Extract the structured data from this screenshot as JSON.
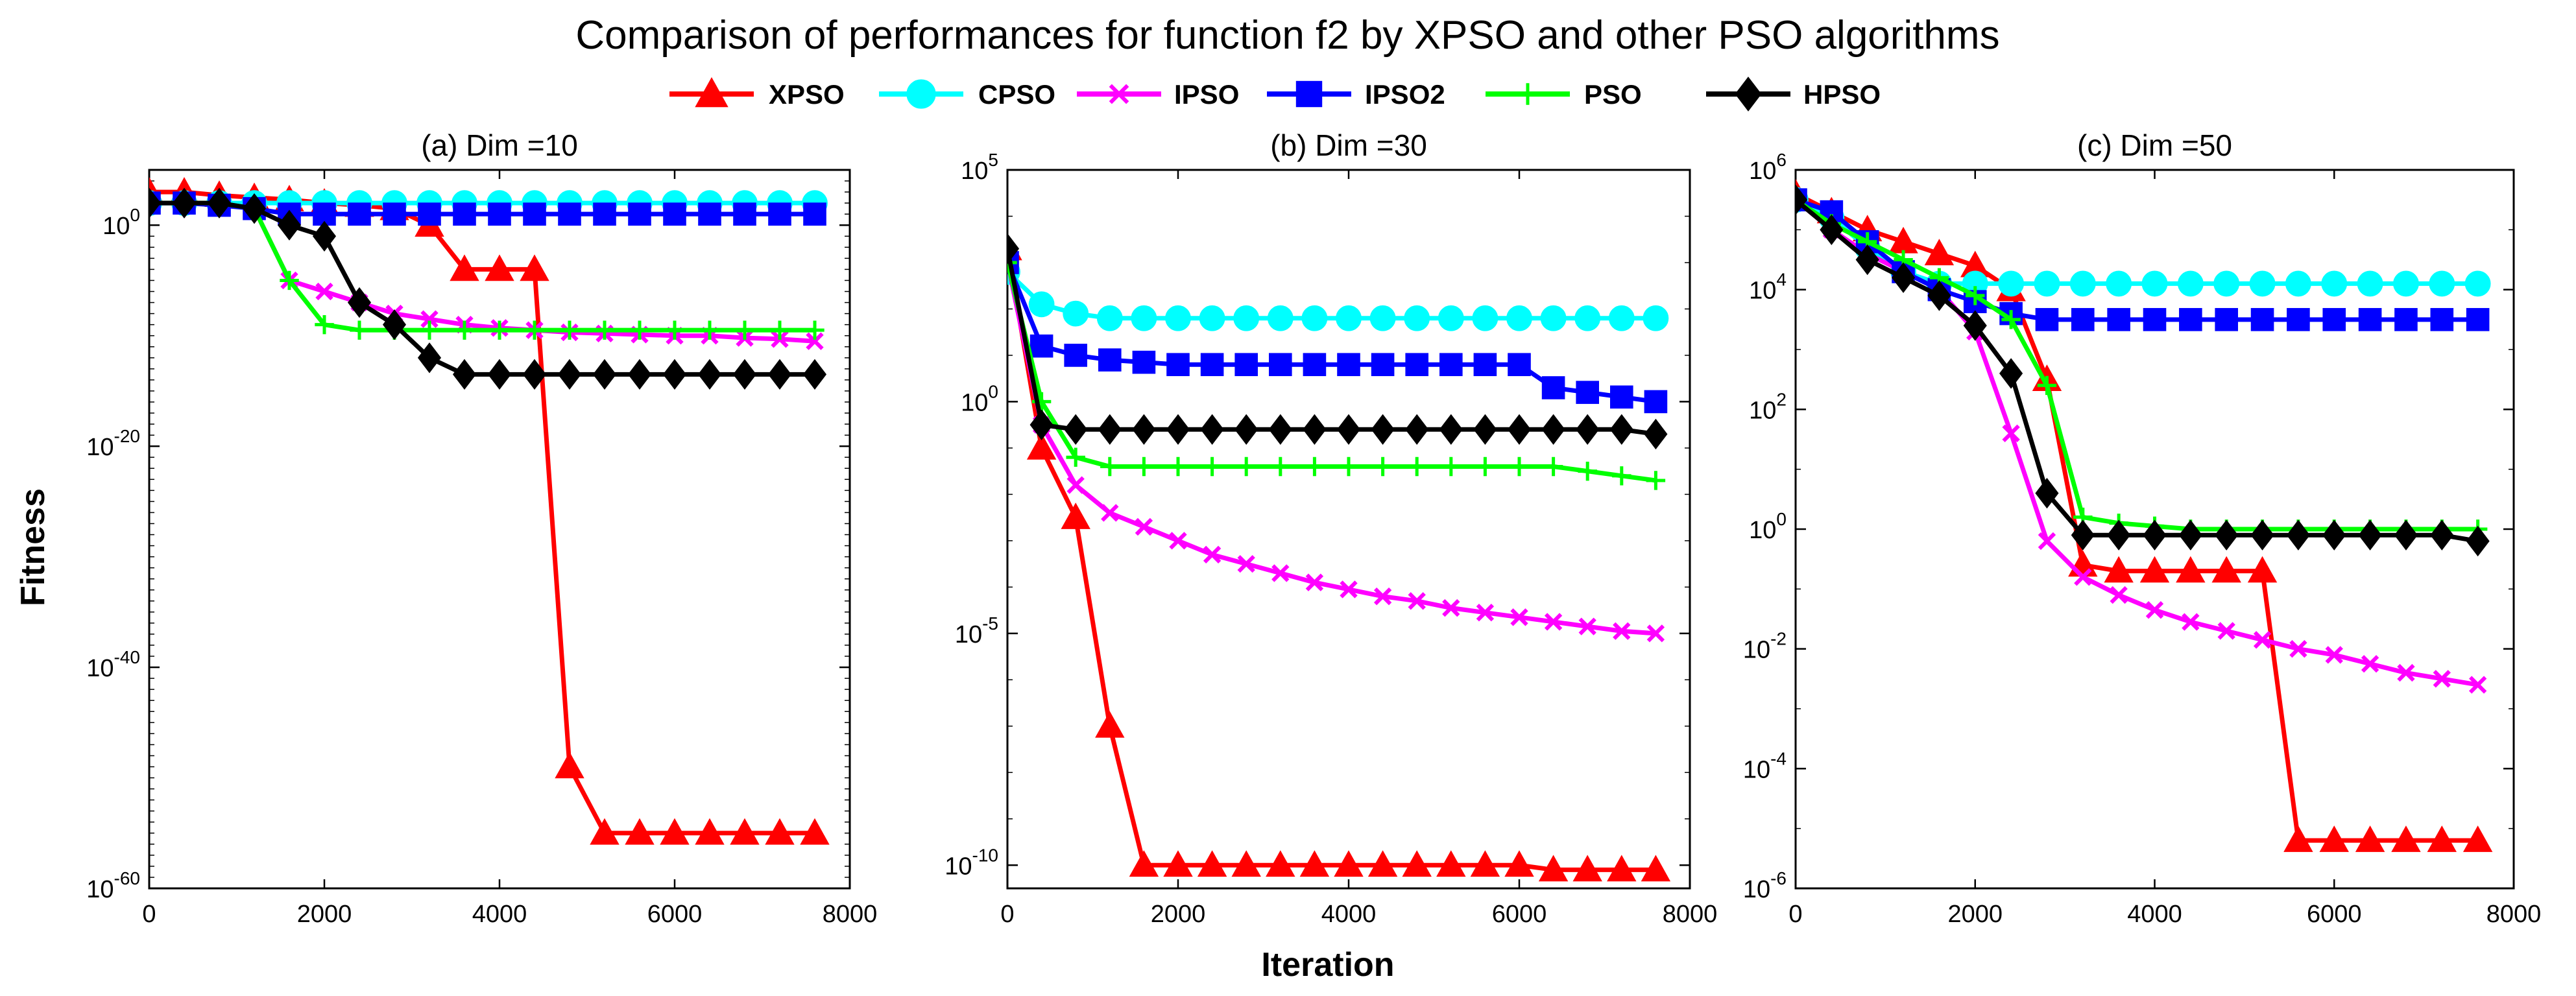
{
  "figure": {
    "title": "Comparison of performances for function f2 by XPSO and other PSO algorithms",
    "xlabel": "Iteration",
    "ylabel": "Fitness"
  },
  "legend": [
    {
      "name": "XPSO",
      "color": "#ff0000",
      "marker": "triangle"
    },
    {
      "name": "CPSO",
      "color": "#00ffff",
      "marker": "circle"
    },
    {
      "name": "IPSO",
      "color": "#ff00ff",
      "marker": "x"
    },
    {
      "name": "IPSO2",
      "color": "#0000ff",
      "marker": "square"
    },
    {
      "name": "PSO",
      "color": "#00ff00",
      "marker": "plus"
    },
    {
      "name": "HPSO",
      "color": "#000000",
      "marker": "diamond"
    }
  ],
  "chart_data": [
    {
      "type": "line",
      "title": "(a) Dim =10",
      "xlabel": "",
      "ylabel": "Fitness",
      "yscale": "log",
      "xlim": [
        0,
        8000
      ],
      "ylim_exp": [
        -60,
        5
      ],
      "xticks": [
        0,
        2000,
        4000,
        6000,
        8000
      ],
      "yticks_exp": [
        -60,
        -40,
        -20,
        0
      ],
      "x": [
        0,
        400,
        800,
        1200,
        1600,
        2000,
        2400,
        2800,
        3200,
        3600,
        4000,
        4400,
        4800,
        5200,
        5600,
        6000,
        6400,
        6800,
        7200,
        7600
      ],
      "series": [
        {
          "name": "XPSO",
          "log10_values": [
            3,
            3,
            2.7,
            2.5,
            2.3,
            2,
            1.8,
            1.5,
            0,
            -4,
            -4,
            -4,
            -49,
            -55,
            -55,
            -55,
            -55,
            -55,
            -55,
            -55
          ]
        },
        {
          "name": "CPSO",
          "log10_values": [
            2,
            2,
            2,
            2,
            2,
            2,
            2,
            2,
            2,
            2,
            2,
            2,
            2,
            2,
            2,
            2,
            2,
            2,
            2,
            2
          ]
        },
        {
          "name": "IPSO",
          "log10_values": [
            2,
            2,
            2,
            1.5,
            -5,
            -6,
            -7,
            -8,
            -8.5,
            -9,
            -9.3,
            -9.5,
            -9.7,
            -9.8,
            -9.9,
            -10,
            -10,
            -10.2,
            -10.3,
            -10.5
          ]
        },
        {
          "name": "IPSO2",
          "log10_values": [
            2,
            2,
            1.8,
            1.5,
            1,
            1,
            1,
            1,
            1,
            1,
            1,
            1,
            1,
            1,
            1,
            1,
            1,
            1,
            1,
            1
          ]
        },
        {
          "name": "PSO",
          "log10_values": [
            2,
            2,
            2,
            1.5,
            -5,
            -9,
            -9.5,
            -9.5,
            -9.5,
            -9.5,
            -9.5,
            -9.5,
            -9.5,
            -9.5,
            -9.5,
            -9.5,
            -9.5,
            -9.5,
            -9.5,
            -9.5
          ]
        },
        {
          "name": "HPSO",
          "log10_values": [
            2,
            2,
            2,
            1.5,
            0,
            -1,
            -7,
            -9,
            -12,
            -13.5,
            -13.5,
            -13.5,
            -13.5,
            -13.5,
            -13.5,
            -13.5,
            -13.5,
            -13.5,
            -13.5,
            -13.5
          ]
        }
      ]
    },
    {
      "type": "line",
      "title": "(b) Dim =30",
      "xlabel": "Iteration",
      "ylabel": "",
      "yscale": "log",
      "xlim": [
        0,
        8000
      ],
      "ylim_exp": [
        -10.5,
        5
      ],
      "xticks": [
        0,
        2000,
        4000,
        6000,
        8000
      ],
      "yticks_exp": [
        -10,
        -5,
        0,
        5
      ],
      "x": [
        0,
        400,
        800,
        1200,
        1600,
        2000,
        2400,
        2800,
        3200,
        3600,
        4000,
        4400,
        4800,
        5200,
        5600,
        6000,
        6400,
        6800,
        7200,
        7600
      ],
      "series": [
        {
          "name": "XPSO",
          "log10_values": [
            3.3,
            -1,
            -2.5,
            -7,
            -10,
            -10,
            -10,
            -10,
            -10,
            -10,
            -10,
            -10,
            -10,
            -10,
            -10,
            -10,
            -10.1,
            -10.1,
            -10.1,
            -10.1
          ]
        },
        {
          "name": "CPSO",
          "log10_values": [
            2.8,
            2.1,
            1.9,
            1.8,
            1.8,
            1.8,
            1.8,
            1.8,
            1.8,
            1.8,
            1.8,
            1.8,
            1.8,
            1.8,
            1.8,
            1.8,
            1.8,
            1.8,
            1.8,
            1.8
          ]
        },
        {
          "name": "IPSO",
          "log10_values": [
            3,
            -0.5,
            -1.8,
            -2.4,
            -2.7,
            -3.0,
            -3.3,
            -3.5,
            -3.7,
            -3.9,
            -4.05,
            -4.2,
            -4.3,
            -4.45,
            -4.55,
            -4.65,
            -4.75,
            -4.85,
            -4.95,
            -5.0
          ]
        },
        {
          "name": "IPSO2",
          "log10_values": [
            3,
            1.2,
            1.0,
            0.9,
            0.85,
            0.8,
            0.8,
            0.8,
            0.8,
            0.8,
            0.8,
            0.8,
            0.8,
            0.8,
            0.8,
            0.8,
            0.3,
            0.2,
            0.1,
            0.0
          ]
        },
        {
          "name": "PSO",
          "log10_values": [
            3,
            0,
            -1.2,
            -1.4,
            -1.4,
            -1.4,
            -1.4,
            -1.4,
            -1.4,
            -1.4,
            -1.4,
            -1.4,
            -1.4,
            -1.4,
            -1.4,
            -1.4,
            -1.4,
            -1.5,
            -1.6,
            -1.7
          ]
        },
        {
          "name": "HPSO",
          "log10_values": [
            3.3,
            -0.5,
            -0.6,
            -0.6,
            -0.6,
            -0.6,
            -0.6,
            -0.6,
            -0.6,
            -0.6,
            -0.6,
            -0.6,
            -0.6,
            -0.6,
            -0.6,
            -0.6,
            -0.6,
            -0.6,
            -0.6,
            -0.7
          ]
        }
      ]
    },
    {
      "type": "line",
      "title": "(c) Dim =50",
      "xlabel": "",
      "ylabel": "",
      "yscale": "log",
      "xlim": [
        0,
        8000
      ],
      "ylim_exp": [
        -6,
        6
      ],
      "xticks": [
        0,
        2000,
        4000,
        6000,
        8000
      ],
      "yticks_exp": [
        -6,
        -4,
        -2,
        0,
        2,
        4,
        6
      ],
      "x": [
        0,
        400,
        800,
        1200,
        1600,
        2000,
        2400,
        2800,
        3200,
        3600,
        4000,
        4400,
        4800,
        5200,
        5600,
        6000,
        6400,
        6800,
        7200,
        7600
      ],
      "series": [
        {
          "name": "XPSO",
          "log10_values": [
            5.6,
            5.3,
            5,
            4.8,
            4.6,
            4.4,
            4,
            2.5,
            -0.6,
            -0.7,
            -0.7,
            -0.7,
            -0.7,
            -0.7,
            -5.2,
            -5.2,
            -5.2,
            -5.2,
            -5.2,
            -5.2
          ]
        },
        {
          "name": "CPSO",
          "log10_values": [
            5.5,
            5.2,
            4.7,
            4.3,
            4.1,
            4.1,
            4.1,
            4.1,
            4.1,
            4.1,
            4.1,
            4.1,
            4.1,
            4.1,
            4.1,
            4.1,
            4.1,
            4.1,
            4.1,
            4.1
          ]
        },
        {
          "name": "IPSO",
          "log10_values": [
            5.5,
            5,
            4.6,
            4.3,
            4,
            3.3,
            1.6,
            -0.2,
            -0.8,
            -1.1,
            -1.35,
            -1.55,
            -1.7,
            -1.85,
            -2,
            -2.1,
            -2.25,
            -2.4,
            -2.5,
            -2.6
          ]
        },
        {
          "name": "IPSO2",
          "log10_values": [
            5.5,
            5.3,
            4.8,
            4.3,
            4.0,
            3.8,
            3.6,
            3.5,
            3.5,
            3.5,
            3.5,
            3.5,
            3.5,
            3.5,
            3.5,
            3.5,
            3.5,
            3.5,
            3.5,
            3.5
          ]
        },
        {
          "name": "PSO",
          "log10_values": [
            5.5,
            5.1,
            4.8,
            4.5,
            4.2,
            3.9,
            3.5,
            2.4,
            0.2,
            0.1,
            0.05,
            0.0,
            0.0,
            0.0,
            0.0,
            0.0,
            0.0,
            0.0,
            0.0,
            0.0
          ]
        },
        {
          "name": "HPSO",
          "log10_values": [
            5.5,
            5,
            4.5,
            4.2,
            3.9,
            3.4,
            2.6,
            0.6,
            -0.1,
            -0.1,
            -0.1,
            -0.1,
            -0.1,
            -0.1,
            -0.1,
            -0.1,
            -0.1,
            -0.1,
            -0.1,
            -0.2
          ]
        }
      ]
    }
  ]
}
